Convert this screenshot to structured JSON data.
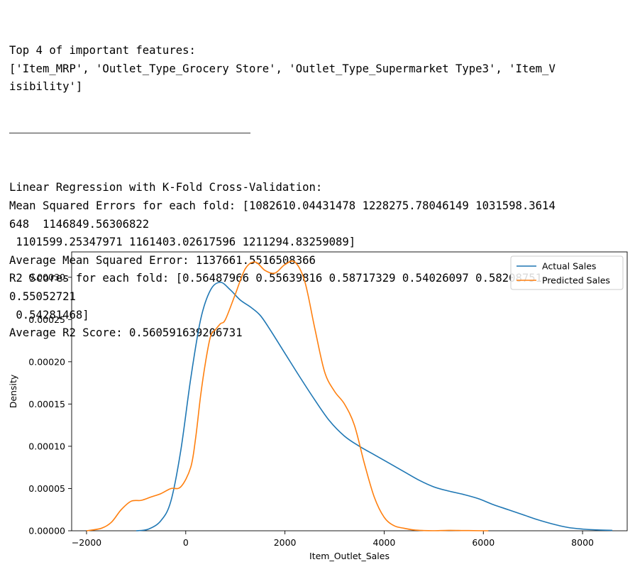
{
  "output": {
    "lines_before_divider": [
      "Top 4 of important features:",
      "['Item_MRP', 'Outlet_Type_Grocery Store', 'Outlet_Type_Supermarket Type3', 'Item_V",
      "isibility']"
    ],
    "lines_after_divider": [
      "Linear Regression with K-Fold Cross-Validation:",
      "Mean Squared Errors for each fold: [1082610.04431478 1228275.78046149 1031598.3614",
      "648  1146849.56306822",
      " 1101599.25347971 1161403.02617596 1211294.83259089]",
      "Average Mean Squared Error: 1137661.5516508366",
      "R2 Scores for each fold: [0.56487966 0.55639816 0.58717329 0.54026097 0.58208751",
      "0.55052721",
      " 0.54281468]",
      "Average R2 Score: 0.560591639206731"
    ]
  },
  "chart_data": {
    "type": "line",
    "xlabel": "Item_Outlet_Sales",
    "ylabel": "Density",
    "xlim": [
      -2300,
      8900
    ],
    "ylim": [
      0,
      0.00033
    ],
    "xticks": [
      -2000,
      0,
      2000,
      4000,
      6000,
      8000
    ],
    "xtick_labels": [
      "−2000",
      "0",
      "2000",
      "4000",
      "6000",
      "8000"
    ],
    "yticks": [
      0,
      5e-05,
      0.0001,
      0.00015,
      0.0002,
      0.00025,
      0.0003
    ],
    "ytick_labels": [
      "0.00000",
      "0.00005",
      "0.00010",
      "0.00015",
      "0.00020",
      "0.00025",
      "0.00030"
    ],
    "grid": false,
    "legend_position": "top-right",
    "series": [
      {
        "name": "Actual Sales",
        "color": "#1f77b4",
        "x": [
          -1000,
          -750,
          -500,
          -300,
          -100,
          100,
          300,
          500,
          700,
          900,
          1100,
          1300,
          1500,
          1700,
          2000,
          2300,
          2600,
          2900,
          3200,
          3500,
          3800,
          4100,
          4400,
          4700,
          5000,
          5300,
          5600,
          5900,
          6200,
          6500,
          6800,
          7100,
          7400,
          7700,
          8000,
          8300,
          8600
        ],
        "y": [
          0,
          2e-06,
          1.2e-05,
          3.5e-05,
          9.5e-05,
          0.00018,
          0.00025,
          0.000285,
          0.000294,
          0.000285,
          0.000273,
          0.000265,
          0.000255,
          0.000238,
          0.00021,
          0.000182,
          0.000155,
          0.00013,
          0.000112,
          0.0001,
          9e-05,
          8e-05,
          7e-05,
          6e-05,
          5.2e-05,
          4.7e-05,
          4.3e-05,
          3.8e-05,
          3.1e-05,
          2.5e-05,
          1.9e-05,
          1.3e-05,
          8e-06,
          4e-06,
          2e-06,
          1e-06,
          5e-07
        ]
      },
      {
        "name": "Predicted Sales",
        "color": "#ff7f0e",
        "x": [
          -2000,
          -1700,
          -1500,
          -1300,
          -1100,
          -900,
          -700,
          -500,
          -300,
          -100,
          100,
          200,
          300,
          400,
          500,
          600,
          700,
          800,
          1000,
          1200,
          1400,
          1600,
          1800,
          2000,
          2200,
          2400,
          2600,
          2800,
          3000,
          3200,
          3400,
          3600,
          3800,
          4000,
          4200,
          4400,
          4600,
          4800,
          5000,
          5300,
          5600,
          5900,
          6100
        ],
        "y": [
          0,
          3e-06,
          1e-05,
          2.5e-05,
          3.5e-05,
          3.6e-05,
          4e-05,
          4.4e-05,
          5e-05,
          5.2e-05,
          7.5e-05,
          0.00011,
          0.00016,
          0.0002,
          0.00023,
          0.000238,
          0.000245,
          0.00025,
          0.00028,
          0.00031,
          0.000318,
          0.000308,
          0.000305,
          0.000315,
          0.000318,
          0.000295,
          0.00024,
          0.000188,
          0.000165,
          0.00015,
          0.000125,
          8e-05,
          4e-05,
          1.6e-05,
          6e-06,
          3e-06,
          1e-06,
          3e-07,
          1e-07,
          5e-07,
          3e-07,
          1e-07,
          0
        ]
      }
    ]
  }
}
